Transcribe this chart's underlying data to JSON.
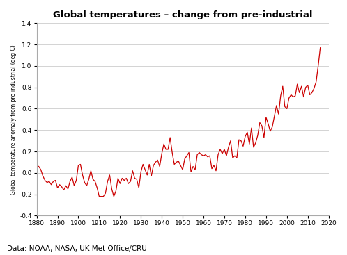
{
  "title": "Global temperatures – change from pre-industrial",
  "ylabel": "Global temperature anomaly from pre-industrial (deg C)",
  "xlabel": "",
  "source_text": "Data: NOAA, NASA, UK Met Office/CRU",
  "line_color": "#cc0000",
  "background_color": "#ffffff",
  "plot_bg_color": "#ffffff",
  "grid_color": "#cccccc",
  "xlim": [
    1880,
    2020
  ],
  "ylim": [
    -0.4,
    1.4
  ],
  "xticks": [
    1880,
    1890,
    1900,
    1910,
    1920,
    1930,
    1940,
    1950,
    1960,
    1970,
    1980,
    1990,
    2000,
    2010,
    2020
  ],
  "yticks": [
    -0.4,
    -0.2,
    0.0,
    0.2,
    0.4,
    0.6,
    0.8,
    1.0,
    1.2,
    1.4
  ],
  "years": [
    1880,
    1881,
    1882,
    1883,
    1884,
    1885,
    1886,
    1887,
    1888,
    1889,
    1890,
    1891,
    1892,
    1893,
    1894,
    1895,
    1896,
    1897,
    1898,
    1899,
    1900,
    1901,
    1902,
    1903,
    1904,
    1905,
    1906,
    1907,
    1908,
    1909,
    1910,
    1911,
    1912,
    1913,
    1914,
    1915,
    1916,
    1917,
    1918,
    1919,
    1920,
    1921,
    1922,
    1923,
    1924,
    1925,
    1926,
    1927,
    1928,
    1929,
    1930,
    1931,
    1932,
    1933,
    1934,
    1935,
    1936,
    1937,
    1938,
    1939,
    1940,
    1941,
    1942,
    1943,
    1944,
    1945,
    1946,
    1947,
    1948,
    1949,
    1950,
    1951,
    1952,
    1953,
    1954,
    1955,
    1956,
    1957,
    1958,
    1959,
    1960,
    1961,
    1962,
    1963,
    1964,
    1965,
    1966,
    1967,
    1968,
    1969,
    1970,
    1971,
    1972,
    1973,
    1974,
    1975,
    1976,
    1977,
    1978,
    1979,
    1980,
    1981,
    1982,
    1983,
    1984,
    1985,
    1986,
    1987,
    1988,
    1989,
    1990,
    1991,
    1992,
    1993,
    1994,
    1995,
    1996,
    1997,
    1998,
    1999,
    2000,
    2001,
    2002,
    2003,
    2004,
    2005,
    2006,
    2007,
    2008,
    2009,
    2010,
    2011,
    2012,
    2013,
    2014,
    2015,
    2016
  ],
  "values": [
    0.07,
    0.06,
    0.03,
    -0.03,
    -0.07,
    -0.09,
    -0.08,
    -0.11,
    -0.08,
    -0.07,
    -0.14,
    -0.11,
    -0.13,
    -0.16,
    -0.12,
    -0.15,
    -0.08,
    -0.04,
    -0.12,
    -0.07,
    0.07,
    0.08,
    -0.02,
    -0.09,
    -0.12,
    -0.06,
    0.02,
    -0.06,
    -0.08,
    -0.14,
    -0.22,
    -0.22,
    -0.22,
    -0.19,
    -0.08,
    -0.02,
    -0.15,
    -0.22,
    -0.17,
    -0.05,
    -0.1,
    -0.05,
    -0.07,
    -0.05,
    -0.1,
    -0.08,
    0.02,
    -0.05,
    -0.06,
    -0.14,
    0.01,
    0.08,
    0.03,
    -0.02,
    0.08,
    -0.03,
    0.07,
    0.1,
    0.12,
    0.06,
    0.18,
    0.27,
    0.22,
    0.22,
    0.33,
    0.19,
    0.08,
    0.1,
    0.11,
    0.07,
    0.03,
    0.13,
    0.16,
    0.19,
    0.01,
    0.06,
    0.03,
    0.17,
    0.19,
    0.17,
    0.16,
    0.17,
    0.15,
    0.16,
    0.04,
    0.07,
    0.02,
    0.17,
    0.22,
    0.18,
    0.22,
    0.16,
    0.24,
    0.3,
    0.14,
    0.16,
    0.14,
    0.31,
    0.3,
    0.25,
    0.34,
    0.38,
    0.27,
    0.42,
    0.24,
    0.28,
    0.35,
    0.47,
    0.44,
    0.33,
    0.52,
    0.46,
    0.39,
    0.43,
    0.53,
    0.63,
    0.55,
    0.72,
    0.81,
    0.62,
    0.6,
    0.7,
    0.73,
    0.71,
    0.72,
    0.83,
    0.75,
    0.81,
    0.71,
    0.8,
    0.82,
    0.73,
    0.75,
    0.79,
    0.85,
    1.0,
    1.17
  ]
}
